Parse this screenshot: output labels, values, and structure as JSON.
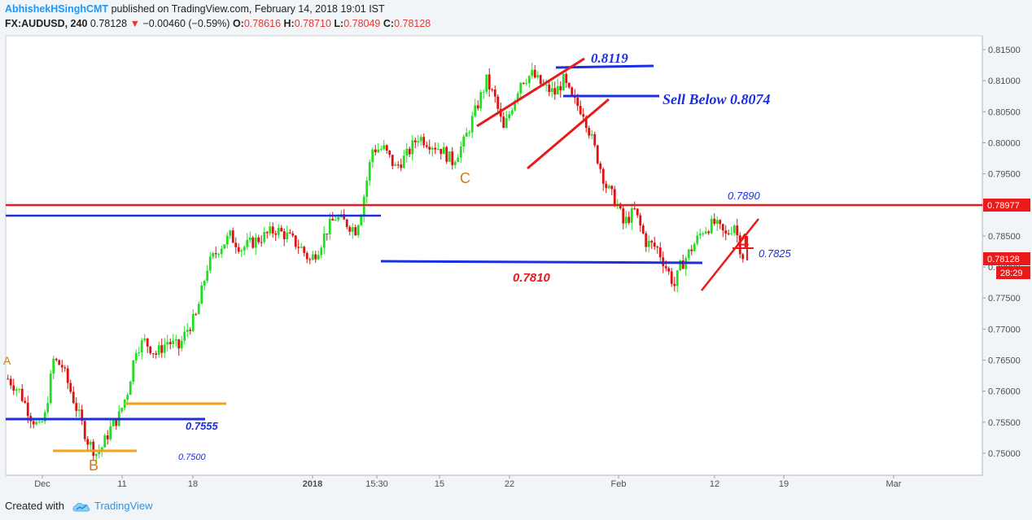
{
  "header": {
    "author": "AbhishekHSinghCMT",
    "published": " published on TradingView.com, February 14, 2018 19:01 IST",
    "symbol": "FX:AUDUSD, 240",
    "last": "0.78128",
    "change": "−0.00460 (−0.59%)",
    "o_label": "O:",
    "o": "0.78616",
    "h_label": "H:",
    "h": "0.78710",
    "l_label": "L:",
    "l": "0.78049",
    "c_label": "C:",
    "c": "0.78128"
  },
  "footer": {
    "created": "Created with",
    "brand": "TradingView"
  },
  "colors": {
    "up": "#22dd22",
    "down": "#dd1111",
    "blue": "#1c2fe0",
    "red": "#e81a1a",
    "orange": "#f7a21b"
  },
  "chart_data": {
    "type": "candlestick",
    "y_ticks": [
      "0.81500",
      "0.81000",
      "0.80500",
      "0.80000",
      "0.79500",
      "0.79000",
      "0.78500",
      "0.78000",
      "0.77500",
      "0.77000",
      "0.76500",
      "0.76000",
      "0.75500",
      "0.75000"
    ],
    "x_ticks": [
      "Dec",
      "11",
      "18",
      "2018",
      "15:30",
      "15",
      "22",
      "Feb",
      "12",
      "19",
      "Mar"
    ],
    "ylim": [
      0.7485,
      0.8165
    ],
    "price_labels": [
      "0.78977",
      "0.78128",
      "28:29"
    ],
    "annotations": [
      "0.8119",
      "Sell Below 0.8074",
      "0.7890",
      "0.7825",
      "0.7810",
      "0.7555",
      "0.7500",
      "B",
      "C",
      "A"
    ],
    "path": [
      [
        0,
        0.762
      ],
      [
        4,
        0.76
      ],
      [
        8,
        0.756
      ],
      [
        11,
        0.754
      ],
      [
        13,
        0.756
      ],
      [
        16,
        0.765
      ],
      [
        19,
        0.764
      ],
      [
        22,
        0.76
      ],
      [
        25,
        0.756
      ],
      [
        28,
        0.752
      ],
      [
        31,
        0.75
      ],
      [
        33,
        0.751
      ],
      [
        36,
        0.754
      ],
      [
        39,
        0.756
      ],
      [
        42,
        0.76
      ],
      [
        45,
        0.767
      ],
      [
        48,
        0.768
      ],
      [
        52,
        0.766
      ],
      [
        56,
        0.768
      ],
      [
        60,
        0.767
      ],
      [
        63,
        0.77
      ],
      [
        66,
        0.772
      ],
      [
        70,
        0.78
      ],
      [
        74,
        0.783
      ],
      [
        78,
        0.785
      ],
      [
        82,
        0.783
      ],
      [
        86,
        0.784
      ],
      [
        90,
        0.785
      ],
      [
        94,
        0.786
      ],
      [
        98,
        0.785
      ],
      [
        103,
        0.783
      ],
      [
        106,
        0.781
      ],
      [
        109,
        0.783
      ],
      [
        112,
        0.786
      ],
      [
        115,
        0.788
      ],
      [
        119,
        0.787
      ],
      [
        122,
        0.786
      ],
      [
        124,
        0.789
      ],
      [
        128,
        0.799
      ],
      [
        132,
        0.799
      ],
      [
        136,
        0.796
      ],
      [
        140,
        0.798
      ],
      [
        144,
        0.801
      ],
      [
        148,
        0.8
      ],
      [
        152,
        0.799
      ],
      [
        156,
        0.797
      ],
      [
        160,
        0.8
      ],
      [
        164,
        0.805
      ],
      [
        168,
        0.81
      ],
      [
        171,
        0.807
      ],
      [
        174,
        0.802
      ],
      [
        177,
        0.806
      ],
      [
        180,
        0.81
      ],
      [
        184,
        0.811
      ],
      [
        188,
        0.809
      ],
      [
        192,
        0.808
      ],
      [
        195,
        0.81
      ],
      [
        198,
        0.807
      ],
      [
        202,
        0.805
      ],
      [
        206,
        0.799
      ],
      [
        210,
        0.793
      ],
      [
        214,
        0.79
      ],
      [
        216,
        0.787
      ],
      [
        218,
        0.788
      ],
      [
        220,
        0.789
      ],
      [
        224,
        0.784
      ],
      [
        228,
        0.783
      ],
      [
        232,
        0.779
      ],
      [
        234,
        0.777
      ],
      [
        236,
        0.78
      ],
      [
        240,
        0.783
      ],
      [
        244,
        0.786
      ],
      [
        248,
        0.787
      ],
      [
        252,
        0.785
      ],
      [
        255,
        0.787
      ],
      [
        258,
        0.7812
      ]
    ],
    "levels": {
      "sell_below": 0.8074,
      "top": 0.8119,
      "red_resistance": 0.78977,
      "support_0_7810": 0.781,
      "resistance_left": 0.788,
      "support_0_7555": 0.7555,
      "orange_high": 0.7578,
      "orange_low": 0.7502
    }
  }
}
